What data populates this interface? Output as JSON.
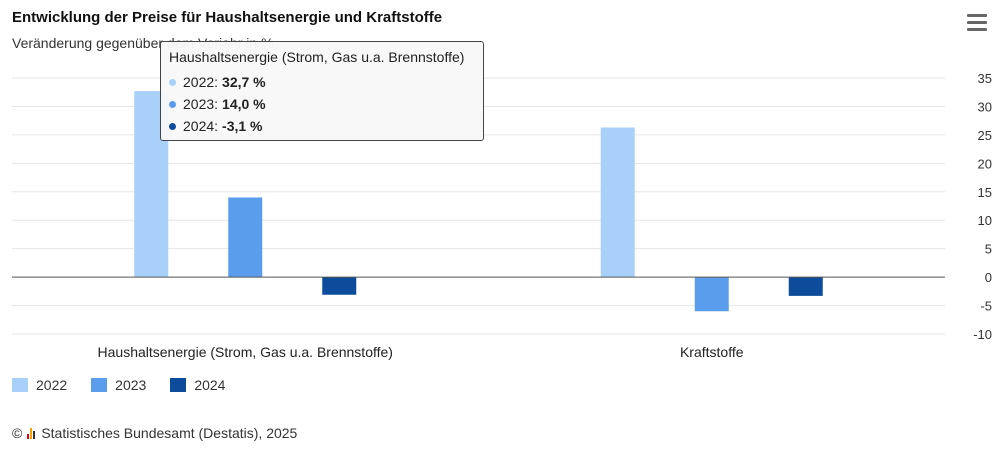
{
  "title": "Entwicklung der Preise für Haushaltsenergie und Kraftstoffe",
  "subtitle": "Veränderung gegenüber dem Vorjahr in %",
  "menu_icon": "hamburger-menu-icon",
  "colors": {
    "2022": "#a8d0f8",
    "2023": "#5b9ded",
    "2024": "#0d4c9a",
    "axis_line": "#555555",
    "grid": "#e6e6e6"
  },
  "legend": [
    {
      "label": "2022",
      "color": "#a8d0f8"
    },
    {
      "label": "2023",
      "color": "#5b9ded"
    },
    {
      "label": "2024",
      "color": "#0d4c9a"
    }
  ],
  "tooltip": {
    "header": "Haushaltsenergie (Strom, Gas u.a. Brennstoffe)",
    "rows": [
      {
        "year": "2022",
        "value": "32,7 %",
        "color": "#a8d0f8"
      },
      {
        "year": "2023",
        "value": "14,0 %",
        "color": "#5b9ded"
      },
      {
        "year": "2024",
        "value": "-3,1 %",
        "color": "#0d4c9a"
      }
    ]
  },
  "source": {
    "prefix": "©",
    "text": "Statistisches Bundesamt (Destatis), 2025"
  },
  "chart_data": {
    "type": "bar",
    "title": "Entwicklung der Preise für Haushaltsenergie und Kraftstoffe",
    "subtitle": "Veränderung gegenüber dem Vorjahr in %",
    "categories": [
      "Haushaltsenergie (Strom, Gas u.a. Brennstoffe)",
      "Kraftstoffe"
    ],
    "series": [
      {
        "name": "2022",
        "values": [
          32.7,
          26.3
        ]
      },
      {
        "name": "2023",
        "values": [
          14.0,
          -6.0
        ]
      },
      {
        "name": "2024",
        "values": [
          -3.1,
          -3.3
        ]
      }
    ],
    "xlabel": "",
    "ylabel": "",
    "ylim": [
      -10,
      35
    ],
    "yticks": [
      35,
      30,
      25,
      20,
      15,
      10,
      5,
      0,
      -5,
      -10
    ],
    "y_axis_side": "right",
    "grid": true,
    "legend_position": "bottom-left"
  }
}
